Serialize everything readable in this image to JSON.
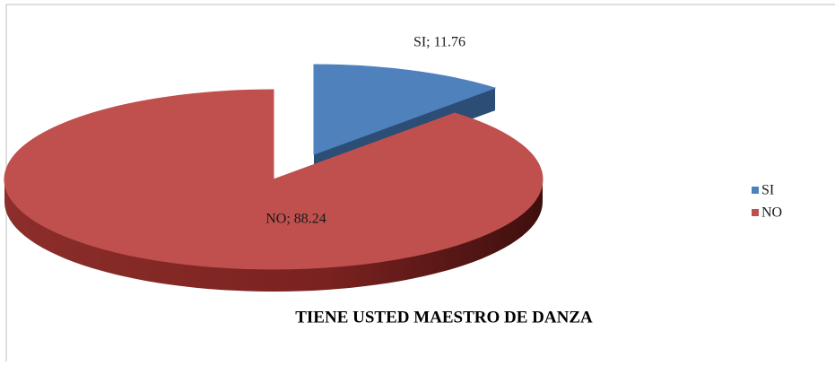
{
  "chart_data": {
    "type": "pie",
    "title": "TIENE USTED MAESTRO DE DANZA",
    "categories": [
      "SI",
      "NO"
    ],
    "values": [
      11.76,
      88.24
    ],
    "value_labels": [
      "SI; 11.76",
      "NO; 88.24"
    ],
    "colors": [
      "#4f81bd",
      "#c0504d"
    ],
    "legend": "right"
  }
}
